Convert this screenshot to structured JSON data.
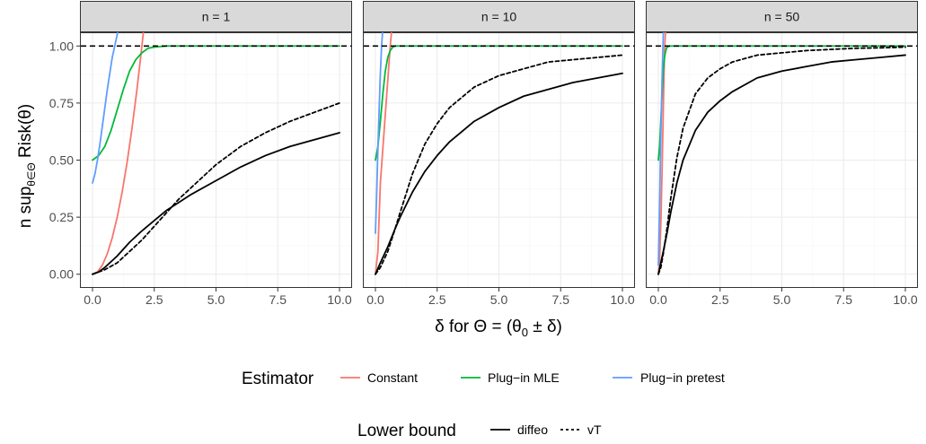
{
  "chart_data": {
    "type": "line",
    "layout": "faceted",
    "facet_panels": [
      "n = 1",
      "n = 10",
      "n = 50"
    ],
    "xlabel": "δ for Θ = (θ₀ ± δ)",
    "ylabel": "n sup θ∈Θ Risk(θ)",
    "ylabel_main": "n sup",
    "ylabel_sub": "θ∈Θ",
    "ylabel_tail": " Risk(θ)",
    "xlabel_prefix": "δ for Θ = ",
    "xlabel_paren": "(θ",
    "xlabel_sub0": "0",
    "xlabel_end": " ± δ)",
    "xlim": [
      0,
      10
    ],
    "ylim": [
      0,
      1
    ],
    "x_ticks": [
      "0.0",
      "2.5",
      "5.0",
      "7.5",
      "10.0"
    ],
    "x_tick_values": [
      0,
      2.5,
      5,
      7.5,
      10
    ],
    "y_ticks": [
      "0.00",
      "0.25",
      "0.50",
      "0.75",
      "1.00"
    ],
    "y_tick_values": [
      0,
      0.25,
      0.5,
      0.75,
      1
    ],
    "grid": true,
    "reference_line": {
      "y": 1.0,
      "style": "dashed",
      "color": "#000000"
    },
    "legend_estimator": {
      "title": "Estimator",
      "entries": [
        {
          "label": "Constant",
          "color": "#F8766D"
        },
        {
          "label": "Plug−in MLE",
          "color": "#00BA38"
        },
        {
          "label": "Plug−in pretest",
          "color": "#619CFF"
        }
      ]
    },
    "legend_lower_bound": {
      "title": "Lower bound",
      "entries": [
        {
          "label": "diffeo",
          "style": "solid"
        },
        {
          "label": "vT",
          "style": "dashed"
        }
      ]
    },
    "panels": [
      {
        "label": "n = 1",
        "series": [
          {
            "name": "Constant",
            "color": "#F8766D",
            "style": "solid",
            "x": [
              0,
              0.2,
              0.4,
              0.6,
              0.8,
              1.0,
              1.2,
              1.4,
              1.6,
              1.8,
              2.0,
              2.1
            ],
            "y": [
              0,
              0.01,
              0.04,
              0.09,
              0.16,
              0.25,
              0.36,
              0.49,
              0.64,
              0.81,
              1.0,
              1.1
            ]
          },
          {
            "name": "Plug−in MLE",
            "color": "#00BA38",
            "style": "solid",
            "x": [
              0,
              0.25,
              0.5,
              0.75,
              1.0,
              1.25,
              1.5,
              1.75,
              2.0,
              2.25,
              2.5,
              3.0,
              10.0
            ],
            "y": [
              0.5,
              0.52,
              0.56,
              0.63,
              0.72,
              0.81,
              0.89,
              0.94,
              0.97,
              0.99,
              0.995,
              1.0,
              1.0
            ]
          },
          {
            "name": "Plug−in pretest",
            "color": "#619CFF",
            "style": "solid",
            "x": [
              0,
              0.1,
              0.2,
              0.3,
              0.4,
              0.5,
              0.6,
              0.7,
              0.8,
              0.9,
              1.0,
              1.1,
              1.15
            ],
            "y": [
              0.4,
              0.44,
              0.5,
              0.57,
              0.65,
              0.73,
              0.81,
              0.88,
              0.95,
              1.0,
              1.05,
              1.1,
              1.12
            ]
          },
          {
            "name": "diffeo",
            "color": "#000000",
            "style": "solid",
            "x": [
              0,
              0.25,
              0.5,
              1,
              1.5,
              2,
              3,
              4,
              5,
              6,
              7,
              8,
              9,
              10
            ],
            "y": [
              0,
              0.01,
              0.03,
              0.08,
              0.14,
              0.19,
              0.28,
              0.35,
              0.41,
              0.47,
              0.52,
              0.56,
              0.59,
              0.62
            ]
          },
          {
            "name": "vT",
            "color": "#000000",
            "style": "dashed",
            "x": [
              0,
              0.5,
              1,
              1.5,
              2,
              2.5,
              3,
              3.5,
              4,
              5,
              6,
              7,
              8,
              9,
              10
            ],
            "y": [
              0,
              0.02,
              0.05,
              0.1,
              0.15,
              0.21,
              0.27,
              0.33,
              0.38,
              0.48,
              0.56,
              0.62,
              0.67,
              0.71,
              0.75
            ]
          }
        ]
      },
      {
        "label": "n = 10",
        "series": [
          {
            "name": "Constant",
            "color": "#F8766D",
            "style": "solid",
            "x": [
              0,
              0.1,
              0.2,
              0.3,
              0.4,
              0.5,
              0.6,
              0.65,
              0.7
            ],
            "y": [
              0,
              0.1,
              0.4,
              0.55,
              0.7,
              0.85,
              1.0,
              1.06,
              1.12
            ]
          },
          {
            "name": "Plug−in MLE",
            "color": "#00BA38",
            "style": "solid",
            "x": [
              0,
              0.1,
              0.2,
              0.3,
              0.4,
              0.5,
              0.6,
              0.7,
              0.8,
              1.0,
              10.0
            ],
            "y": [
              0.5,
              0.56,
              0.67,
              0.79,
              0.89,
              0.95,
              0.98,
              0.995,
              1.0,
              1.0,
              1.0
            ]
          },
          {
            "name": "Plug−in pretest",
            "color": "#619CFF",
            "style": "solid",
            "x": [
              0,
              0.05,
              0.1,
              0.15,
              0.2,
              0.25,
              0.3,
              0.35
            ],
            "y": [
              0.18,
              0.35,
              0.55,
              0.72,
              0.88,
              1.0,
              1.08,
              1.12
            ]
          },
          {
            "name": "diffeo",
            "color": "#000000",
            "style": "solid",
            "x": [
              0,
              0.2,
              0.5,
              0.8,
              1,
              1.5,
              2,
              2.5,
              3,
              4,
              5,
              6,
              7,
              8,
              9,
              10
            ],
            "y": [
              0,
              0.05,
              0.12,
              0.2,
              0.25,
              0.36,
              0.45,
              0.52,
              0.58,
              0.67,
              0.73,
              0.78,
              0.81,
              0.84,
              0.86,
              0.88
            ]
          },
          {
            "name": "vT",
            "color": "#000000",
            "style": "dashed",
            "x": [
              0,
              0.2,
              0.5,
              0.8,
              1,
              1.5,
              2,
              2.5,
              3,
              4,
              5,
              6,
              7,
              8,
              9,
              10
            ],
            "y": [
              0,
              0.03,
              0.1,
              0.2,
              0.27,
              0.44,
              0.57,
              0.66,
              0.73,
              0.82,
              0.87,
              0.9,
              0.93,
              0.94,
              0.95,
              0.96
            ]
          }
        ]
      },
      {
        "label": "n = 50",
        "series": [
          {
            "name": "Constant",
            "color": "#F8766D",
            "style": "solid",
            "x": [
              0,
              0.05,
              0.1,
              0.15,
              0.2,
              0.25,
              0.3,
              0.32
            ],
            "y": [
              0,
              0.06,
              0.22,
              0.45,
              0.72,
              0.98,
              1.08,
              1.12
            ]
          },
          {
            "name": "Plug−in MLE",
            "color": "#00BA38",
            "style": "solid",
            "x": [
              0,
              0.05,
              0.1,
              0.15,
              0.2,
              0.25,
              0.3,
              0.35,
              0.45,
              10.0
            ],
            "y": [
              0.5,
              0.56,
              0.67,
              0.79,
              0.89,
              0.95,
              0.98,
              0.995,
              1.0,
              1.0
            ]
          },
          {
            "name": "Plug−in pretest",
            "color": "#619CFF",
            "style": "solid",
            "x": [
              0,
              0.05,
              0.1,
              0.15,
              0.2,
              0.25
            ],
            "y": [
              0.04,
              0.3,
              0.6,
              0.85,
              1.05,
              1.12
            ]
          },
          {
            "name": "diffeo",
            "color": "#000000",
            "style": "solid",
            "x": [
              0,
              0.1,
              0.2,
              0.35,
              0.5,
              0.75,
              1,
              1.5,
              2,
              2.5,
              3,
              4,
              5,
              6,
              7,
              8,
              9,
              10
            ],
            "y": [
              0,
              0.05,
              0.1,
              0.18,
              0.27,
              0.4,
              0.5,
              0.63,
              0.71,
              0.76,
              0.8,
              0.86,
              0.89,
              0.91,
              0.93,
              0.94,
              0.95,
              0.96
            ]
          },
          {
            "name": "vT",
            "color": "#000000",
            "style": "dashed",
            "x": [
              0,
              0.1,
              0.2,
              0.35,
              0.5,
              0.75,
              1,
              1.5,
              2,
              2.5,
              3,
              4,
              5,
              6,
              7,
              8,
              9,
              10
            ],
            "y": [
              0,
              0.03,
              0.09,
              0.2,
              0.33,
              0.51,
              0.64,
              0.79,
              0.86,
              0.9,
              0.93,
              0.96,
              0.97,
              0.98,
              0.985,
              0.99,
              0.992,
              0.995
            ]
          }
        ]
      }
    ]
  }
}
